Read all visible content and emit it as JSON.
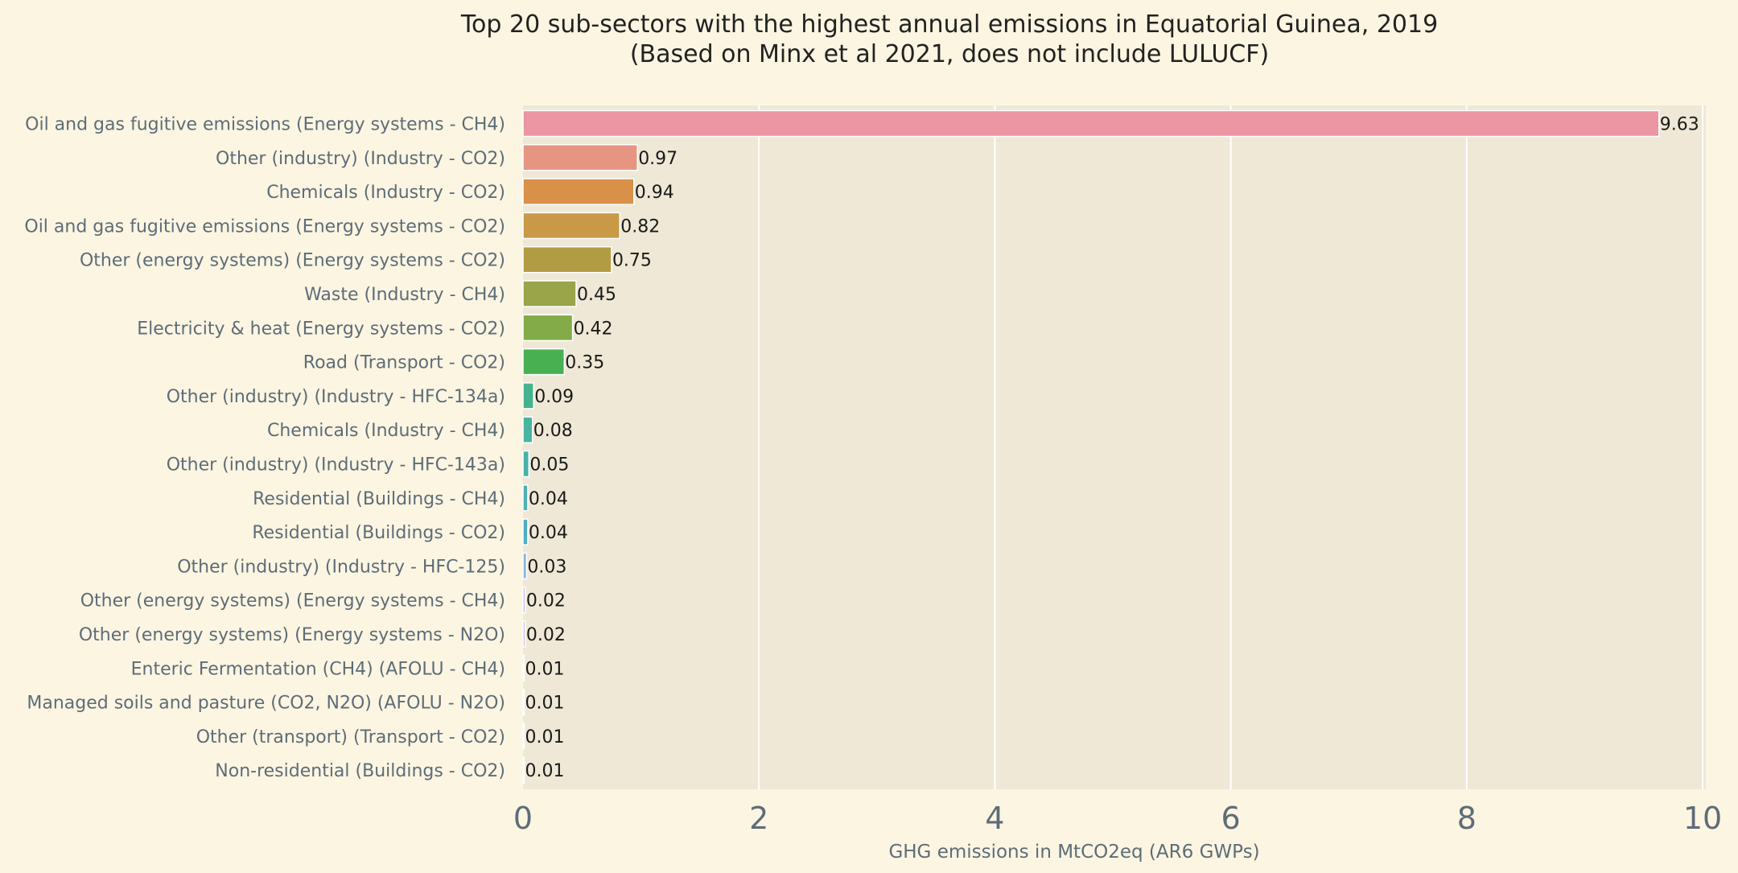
{
  "chart_data": {
    "type": "bar",
    "orientation": "horizontal",
    "title": "Top 20 sub-sectors with the highest annual emissions in Equatorial Guinea, 2019",
    "subtitle": "(Based on Minx et al 2021, does not include LULUCF)",
    "xlabel": "GHG emissions in MtCO2eq (AR6 GWPs)",
    "ylabel": "",
    "xlim": [
      0,
      10
    ],
    "xticks": [
      0,
      2,
      4,
      6,
      8,
      10
    ],
    "grid": true,
    "categories": [
      "Oil and gas fugitive emissions (Energy systems - CH4)",
      "Other (industry) (Industry - CO2)",
      "Chemicals (Industry - CO2)",
      "Oil and gas fugitive emissions (Energy systems - CO2)",
      "Other (energy systems) (Energy systems - CO2)",
      "Waste (Industry - CH4)",
      "Electricity & heat (Energy systems - CO2)",
      "Road (Transport - CO2)",
      "Other (industry) (Industry - HFC-134a)",
      "Chemicals (Industry - CH4)",
      "Other (industry) (Industry - HFC-143a)",
      "Residential (Buildings - CH4)",
      "Residential (Buildings - CO2)",
      "Other (industry) (Industry - HFC-125)",
      "Other (energy systems) (Energy systems - CH4)",
      "Other (energy systems) (Energy systems - N2O)",
      "Enteric Fermentation (CH4) (AFOLU - CH4)",
      "Managed soils and pasture (CO2, N2O) (AFOLU - N2O)",
      "Other (transport) (Transport - CO2)",
      "Non-residential (Buildings - CO2)"
    ],
    "values": [
      9.63,
      0.97,
      0.94,
      0.82,
      0.75,
      0.45,
      0.42,
      0.35,
      0.09,
      0.08,
      0.05,
      0.04,
      0.04,
      0.03,
      0.02,
      0.02,
      0.01,
      0.01,
      0.01,
      0.01
    ],
    "value_labels": [
      "9.63",
      "0.97",
      "0.94",
      "0.82",
      "0.75",
      "0.45",
      "0.42",
      "0.35",
      "0.09",
      "0.08",
      "0.05",
      "0.04",
      "0.04",
      "0.03",
      "0.02",
      "0.02",
      "0.01",
      "0.01",
      "0.01",
      "0.01"
    ],
    "colors": [
      "#eb96a2",
      "#e69582",
      "#d99048",
      "#c89a48",
      "#b29c43",
      "#9aa448",
      "#83ab48",
      "#49b052",
      "#46b38e",
      "#49b49f",
      "#48b2a8",
      "#4ab1b7",
      "#4caec6",
      "#89b7d8",
      "#c9c2e2",
      "#d4c4e2",
      "#dcc4e2",
      "#e0c4e0",
      "#e6c4dc",
      "#eac4d8"
    ]
  },
  "colors": {
    "page_background": "#fcf5e2",
    "plot_background": "#efe8d6",
    "gridline": "#ffffff",
    "bar_edge": "#ffffff",
    "label_text": "#5d6d78",
    "title_text": "#222222"
  }
}
